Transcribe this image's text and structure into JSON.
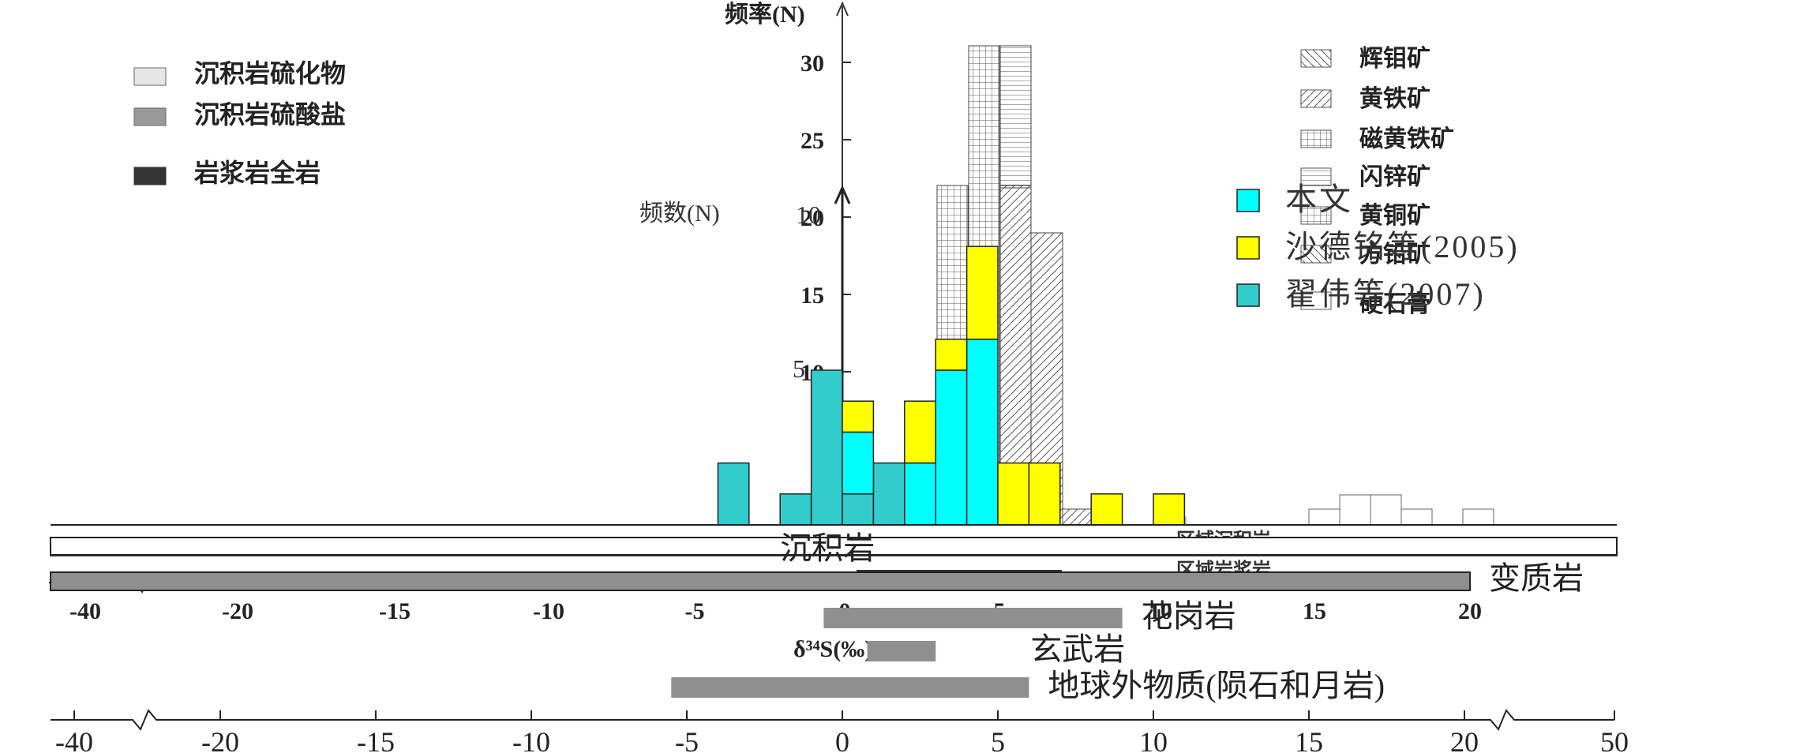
{
  "colors": {
    "cyan": "#00FFFF",
    "teal": "#33CCCC",
    "yellow": "#FFFF00",
    "bar_light": "#E6E6E6",
    "bar_gray": "#999999",
    "bar_dark": "#333333",
    "range_bar": "#8F8F8F",
    "white": "#FFFFFF"
  },
  "back_panel": {
    "ylabel": "频率(N)",
    "y_ticks": [
      "30",
      "25",
      "20",
      "15",
      "10"
    ],
    "legend_left": [
      {
        "label": "沉积岩硫化物",
        "color": "bar_light"
      },
      {
        "label": "沉积岩硫酸盐",
        "color": "bar_gray"
      },
      {
        "label": "岩浆岩全岩",
        "color": "bar_dark"
      }
    ],
    "legend_right": [
      {
        "label": "辉钼矿",
        "pattern": "diag-back"
      },
      {
        "label": "黄铁矿",
        "pattern": "diag-fwd"
      },
      {
        "label": "磁黄铁矿",
        "pattern": "grid"
      },
      {
        "label": "闪锌矿",
        "pattern": "hlines"
      },
      {
        "label": "黄铜矿",
        "pattern": "grid"
      },
      {
        "label": "方铅矿",
        "pattern": "diag-back"
      },
      {
        "label": "硬石膏",
        "pattern": "plain"
      }
    ],
    "x_ticks": [
      "-40",
      "-20",
      "-15",
      "-10",
      "-5",
      "0",
      "5",
      "10",
      "15",
      "20"
    ],
    "xlabel": "δ³⁴S(‰)",
    "partial_labels": [
      "区域沉积岩",
      "区域岩浆岩"
    ]
  },
  "chart_data": {
    "type": "bar",
    "ylabel": "频数(N)",
    "y_ticks": [
      "10",
      "5"
    ],
    "x_ticks": [
      "-40",
      "-20",
      "-15",
      "-10",
      "-5",
      "0",
      "5",
      "10",
      "15",
      "20",
      "50"
    ],
    "bin_width": 1,
    "legend": [
      {
        "label": "本文",
        "color": "cyan"
      },
      {
        "label": "沙德铭等(2005)",
        "color": "yellow"
      },
      {
        "label": "翟伟等(2007)",
        "color": "teal"
      }
    ],
    "series": [
      {
        "name": "本文",
        "color": "cyan",
        "bins": [
          {
            "x0": 0,
            "count": 2
          },
          {
            "x0": 2,
            "count": 2
          },
          {
            "x0": 3,
            "count": 5
          },
          {
            "x0": 4,
            "count": 6
          }
        ]
      },
      {
        "name": "沙德铭等(2005)",
        "color": "yellow",
        "bins": [
          {
            "x0": 0,
            "count": 1
          },
          {
            "x0": 2,
            "count": 2
          },
          {
            "x0": 3,
            "count": 1
          },
          {
            "x0": 4,
            "count": 3
          },
          {
            "x0": 5,
            "count": 2
          },
          {
            "x0": 6,
            "count": 2
          },
          {
            "x0": 8,
            "count": 1
          },
          {
            "x0": 10,
            "count": 1
          }
        ]
      },
      {
        "name": "翟伟等(2007)",
        "color": "teal",
        "bins": [
          {
            "x0": -4,
            "count": 2
          },
          {
            "x0": -2,
            "count": 1
          },
          {
            "x0": -1,
            "count": 5
          },
          {
            "x0": 0,
            "count": 1
          },
          {
            "x0": 1,
            "count": 2
          }
        ]
      }
    ],
    "ranges": [
      {
        "label": "沉积岩",
        "from": -40,
        "to": 50,
        "color": "white",
        "bordered": true
      },
      {
        "label": "变质岩",
        "from": -20,
        "to": 20,
        "color": "range_bar",
        "bordered": true
      },
      {
        "label": "花岗岩",
        "from": -0.6,
        "to": 9,
        "color": "range_bar"
      },
      {
        "label": "玄武岩",
        "from": 0.8,
        "to": 3,
        "color": "range_bar"
      },
      {
        "label": "地球外物质(陨石和月岩)",
        "from": -5.5,
        "to": 6,
        "color": "range_bar"
      }
    ]
  }
}
